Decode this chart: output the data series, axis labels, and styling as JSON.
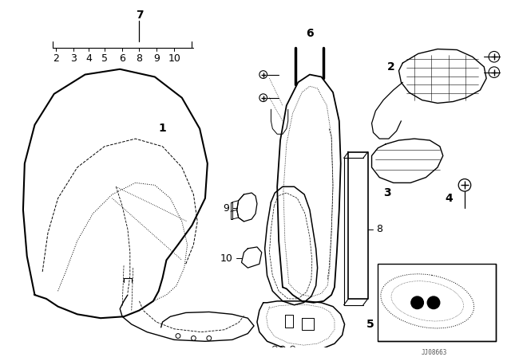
{
  "bg_color": "#ffffff",
  "line_color": "#000000",
  "watermark": "JJ08663",
  "figsize": [
    6.4,
    4.48
  ],
  "dpi": 100
}
